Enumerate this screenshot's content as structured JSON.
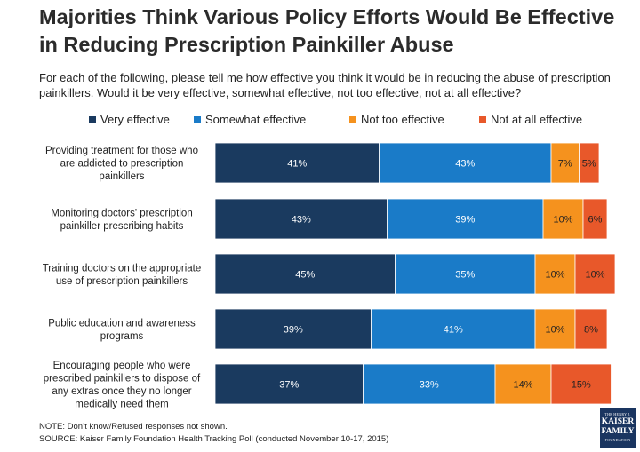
{
  "title": "Majorities Think Various Policy Efforts Would Be Effective in Reducing Prescription Painkiller Abuse",
  "subtitle": "For each of the following, please tell me how effective you think it would be in reducing the abuse of prescription painkillers. Would it be very effective, somewhat effective, not too effective, not at all effective?",
  "note": "NOTE: Don’t know/Refused responses not shown.",
  "source": "SOURCE: Kaiser Family Foundation Health Tracking Poll (conducted November 10-17, 2015)",
  "logo": {
    "line1": "THE HENRY J.",
    "line2": "KAISER",
    "line3": "FAMILY",
    "line4": "FOUNDATION"
  },
  "colors": {
    "very": "#1a3a5f",
    "somewhat": "#1a7bc8",
    "not_too": "#f5921e",
    "not_at_all": "#e8582a"
  },
  "chart_data": {
    "type": "bar",
    "orientation": "horizontal",
    "stacked": true,
    "legend_position": "top",
    "categories": [
      [
        "Providing treatment for those who",
        "are addicted to prescription",
        "painkillers"
      ],
      [
        "Monitoring doctors' prescription",
        "painkiller prescribing habits"
      ],
      [
        "Training doctors on the appropriate",
        "use of prescription painkillers"
      ],
      [
        "Public education and awareness",
        "programs"
      ],
      [
        "Encouraging people who were",
        "prescribed painkillers to dispose of",
        "any extras once they no longer",
        "medically need them"
      ]
    ],
    "series": [
      {
        "name": "Very effective",
        "values": [
          41,
          43,
          45,
          39,
          37
        ],
        "color": "#1a3a5f"
      },
      {
        "name": "Somewhat effective",
        "values": [
          43,
          39,
          35,
          41,
          33
        ],
        "color": "#1a7bc8"
      },
      {
        "name": "Not too effective",
        "values": [
          7,
          10,
          10,
          10,
          14
        ],
        "color": "#f5921e"
      },
      {
        "name": "Not at all effective",
        "values": [
          5,
          6,
          10,
          8,
          15
        ],
        "color": "#e8582a"
      }
    ],
    "value_suffix": "%",
    "xlim": [
      0,
      100
    ]
  }
}
